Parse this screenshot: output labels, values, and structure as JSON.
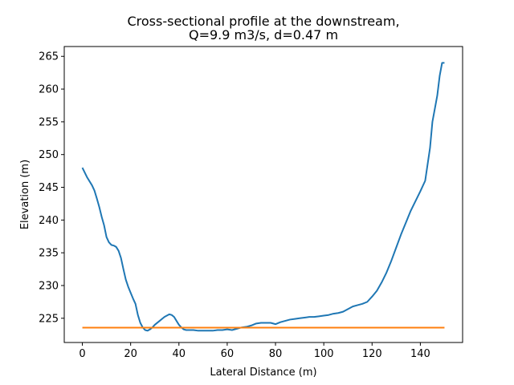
{
  "chart_data": {
    "type": "line",
    "title_line1": "Cross-sectional profile at the downstream,",
    "title_line2": "Q=9.9 m3/s, d=0.47 m",
    "xlabel": "Lateral Distance (m)",
    "ylabel": "Elevation (m)",
    "xlim": [
      -7.5,
      157.5
    ],
    "ylim": [
      221.3,
      266.5
    ],
    "xticks": [
      0,
      20,
      40,
      60,
      80,
      100,
      120,
      140
    ],
    "yticks": [
      225,
      230,
      235,
      240,
      245,
      250,
      255,
      260,
      265
    ],
    "grid": false,
    "series": [
      {
        "color": "#1f77b4",
        "x": [
          0,
          2,
          4,
          5,
          6,
          7,
          8,
          9,
          10,
          11,
          12,
          13,
          14,
          15,
          16,
          17,
          18,
          19,
          20,
          21,
          22,
          23,
          24,
          25,
          26,
          27,
          28,
          29,
          30,
          32,
          34,
          36,
          37,
          38,
          39,
          40,
          41,
          42,
          43,
          44,
          45,
          46,
          48,
          50,
          52,
          54,
          56,
          58,
          60,
          62,
          64,
          66,
          68,
          70,
          72,
          74,
          76,
          78,
          80,
          82,
          84,
          86,
          88,
          90,
          92,
          94,
          96,
          98,
          100,
          102,
          104,
          106,
          108,
          110,
          112,
          114,
          116,
          118,
          120,
          122,
          124,
          126,
          128,
          130,
          132,
          134,
          136,
          138,
          140,
          142,
          144,
          145,
          146,
          147,
          148,
          149,
          150
        ],
        "y": [
          248.0,
          246.5,
          245.3,
          244.5,
          243.3,
          242.0,
          240.5,
          239.2,
          237.4,
          236.6,
          236.2,
          236.1,
          235.9,
          235.3,
          234.2,
          232.5,
          230.9,
          229.8,
          228.9,
          228.0,
          227.2,
          225.5,
          224.3,
          223.6,
          223.2,
          223.1,
          223.3,
          223.6,
          224.0,
          224.6,
          225.2,
          225.6,
          225.5,
          225.2,
          224.6,
          224.0,
          223.6,
          223.3,
          223.2,
          223.2,
          223.2,
          223.2,
          223.1,
          223.1,
          223.1,
          223.1,
          223.2,
          223.2,
          223.3,
          223.2,
          223.4,
          223.6,
          223.7,
          223.9,
          224.2,
          224.3,
          224.3,
          224.3,
          224.1,
          224.4,
          224.6,
          224.8,
          224.9,
          225.0,
          225.1,
          225.2,
          225.2,
          225.3,
          225.4,
          225.5,
          225.7,
          225.8,
          226.0,
          226.4,
          226.8,
          227.0,
          227.2,
          227.5,
          228.3,
          229.2,
          230.5,
          232.0,
          233.8,
          235.8,
          237.8,
          239.6,
          241.4,
          242.9,
          244.4,
          246.0,
          251.0,
          255.0,
          257.0,
          259.0,
          262.0,
          264.0,
          264.0
        ]
      },
      {
        "color": "#ff7f0e",
        "x": [
          0,
          150
        ],
        "y": [
          223.57,
          223.57
        ]
      }
    ]
  }
}
